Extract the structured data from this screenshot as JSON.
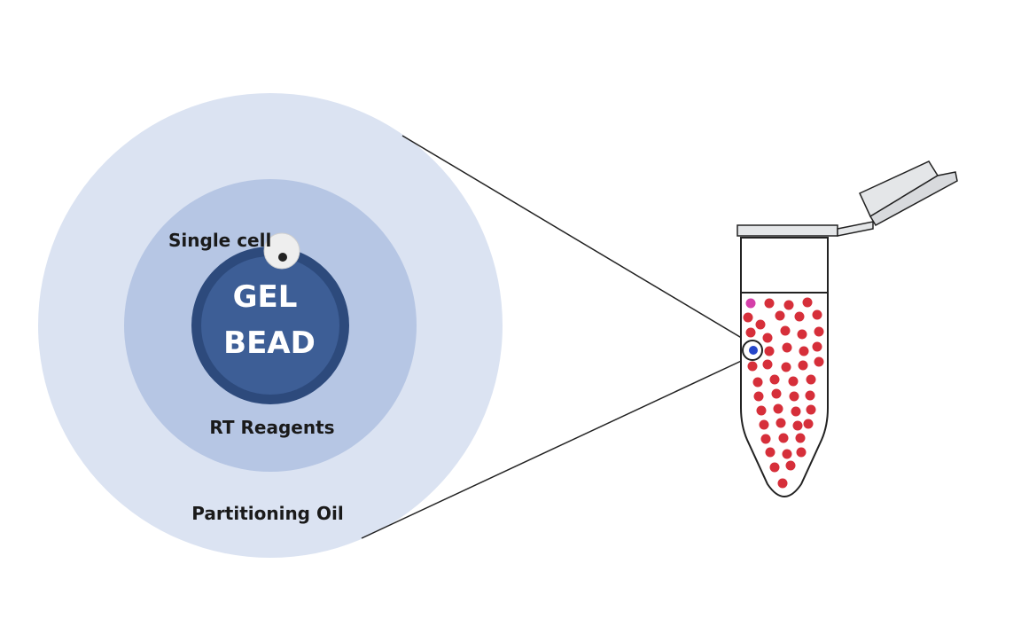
{
  "labels": {
    "gel_bead_line1": "GEL",
    "gel_bead_line2": "BEAD",
    "single_cell": "Single cell",
    "rt_reagents": "RT Reagents",
    "partitioning_oil": "Partitioning Oil"
  },
  "colors": {
    "oil": "#dbe3f2",
    "reagents": "#b6c6e4",
    "bead_outer": "#2d4a7c",
    "bead_inner": "#3d5e96",
    "cell": "#eeeeee",
    "nucleus": "#222222",
    "tube_body": "#ffffff",
    "tube_cap": "#e4e6e8",
    "outline": "#222222",
    "droplet_palette": [
      "#d62f3a",
      "#2f9e3a",
      "#6fd63a",
      "#9b3fc9",
      "#d43fa9",
      "#2546c9",
      "#d9b43d",
      "#c9ad4a"
    ]
  },
  "icons": {
    "cell": "cell-icon",
    "tube": "microcentrifuge-tube-icon"
  }
}
